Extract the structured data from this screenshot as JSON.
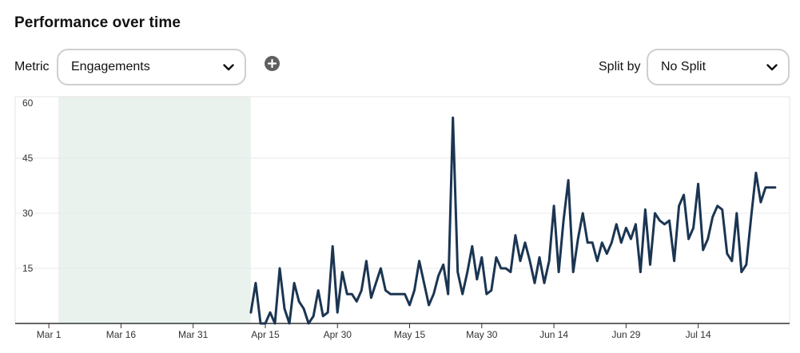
{
  "header": {
    "title": "Performance over time"
  },
  "controls": {
    "metric_label": "Metric",
    "metric_value": "Engagements",
    "split_label": "Split by",
    "split_value": "No Split"
  },
  "icons": {
    "metric_chevron": "chevron-down-icon",
    "split_chevron": "chevron-down-icon",
    "add": "plus-circle-icon"
  },
  "colors": {
    "line": "#1b3552",
    "shade": "#eaf2ee",
    "grid": "#e8e8e8",
    "axis": "#333333"
  },
  "chart_data": {
    "type": "line",
    "title": "",
    "xlabel": "",
    "ylabel": "",
    "ylim": [
      0,
      60
    ],
    "yticks": [
      15,
      30,
      45,
      60
    ],
    "ytick_labels": [
      "15",
      "30",
      "45",
      "60"
    ],
    "xlim": [
      "2024-02-23",
      "2024-08-02"
    ],
    "xticks": [
      "2024-03-01",
      "2024-03-16",
      "2024-03-31",
      "2024-04-15",
      "2024-04-30",
      "2024-05-15",
      "2024-05-30",
      "2024-06-14",
      "2024-06-29",
      "2024-07-14"
    ],
    "xtick_labels": [
      "Mar 1",
      "Mar 16",
      "Mar 31",
      "Apr 15",
      "Apr 30",
      "May 15",
      "May 30",
      "Jun 14",
      "Jun 29",
      "Jul 14"
    ],
    "grid": true,
    "shaded_range": [
      "2024-03-03",
      "2024-04-12"
    ],
    "series": [
      {
        "name": "",
        "x": [
          "2024-04-12",
          "2024-04-13",
          "2024-04-14",
          "2024-04-15",
          "2024-04-16",
          "2024-04-17",
          "2024-04-18",
          "2024-04-19",
          "2024-04-20",
          "2024-04-21",
          "2024-04-22",
          "2024-04-23",
          "2024-04-24",
          "2024-04-25",
          "2024-04-26",
          "2024-04-27",
          "2024-04-28",
          "2024-04-29",
          "2024-04-30",
          "2024-05-01",
          "2024-05-02",
          "2024-05-03",
          "2024-05-04",
          "2024-05-05",
          "2024-05-06",
          "2024-05-07",
          "2024-05-08",
          "2024-05-09",
          "2024-05-10",
          "2024-05-11",
          "2024-05-12",
          "2024-05-13",
          "2024-05-14",
          "2024-05-15",
          "2024-05-16",
          "2024-05-17",
          "2024-05-18",
          "2024-05-19",
          "2024-05-20",
          "2024-05-21",
          "2024-05-22",
          "2024-05-23",
          "2024-05-24",
          "2024-05-25",
          "2024-05-26",
          "2024-05-27",
          "2024-05-28",
          "2024-05-29",
          "2024-05-30",
          "2024-05-31",
          "2024-06-01",
          "2024-06-02",
          "2024-06-03",
          "2024-06-04",
          "2024-06-05",
          "2024-06-06",
          "2024-06-07",
          "2024-06-08",
          "2024-06-09",
          "2024-06-10",
          "2024-06-11",
          "2024-06-12",
          "2024-06-13",
          "2024-06-14",
          "2024-06-15",
          "2024-06-16",
          "2024-06-17",
          "2024-06-18",
          "2024-06-19",
          "2024-06-20",
          "2024-06-21",
          "2024-06-22",
          "2024-06-23",
          "2024-06-24",
          "2024-06-25",
          "2024-06-26",
          "2024-06-27",
          "2024-06-28",
          "2024-06-29",
          "2024-06-30",
          "2024-07-01",
          "2024-07-02",
          "2024-07-03",
          "2024-07-04",
          "2024-07-05",
          "2024-07-06",
          "2024-07-07",
          "2024-07-08",
          "2024-07-09",
          "2024-07-10",
          "2024-07-11",
          "2024-07-12",
          "2024-07-13",
          "2024-07-14",
          "2024-07-15",
          "2024-07-16",
          "2024-07-17",
          "2024-07-18",
          "2024-07-19",
          "2024-07-20",
          "2024-07-21",
          "2024-07-22",
          "2024-07-23",
          "2024-07-24",
          "2024-07-25",
          "2024-07-26",
          "2024-07-27",
          "2024-07-28",
          "2024-07-29",
          "2024-07-30"
        ],
        "values": [
          3,
          11,
          0,
          0,
          3,
          0,
          15,
          4,
          0,
          11,
          6,
          4,
          0,
          2,
          9,
          2,
          3,
          21,
          3,
          14,
          8,
          8,
          6,
          9,
          17,
          7,
          11,
          15,
          9,
          8,
          8,
          8,
          8,
          5,
          9,
          17,
          11,
          5,
          8,
          13,
          16,
          8,
          56,
          14,
          8,
          14,
          21,
          12,
          18,
          8,
          9,
          18,
          15,
          15,
          14,
          24,
          17,
          22,
          17,
          11,
          18,
          11,
          17,
          32,
          14,
          28,
          39,
          14,
          23,
          30,
          22,
          22,
          17,
          22,
          19,
          22,
          27,
          22,
          26,
          23,
          27,
          14,
          31,
          16,
          30,
          28,
          27,
          28,
          17,
          32,
          35,
          23,
          26,
          38,
          20,
          23,
          29,
          32,
          31,
          19,
          17,
          30,
          14,
          16,
          29,
          41,
          33,
          37,
          37,
          37
        ]
      }
    ]
  }
}
